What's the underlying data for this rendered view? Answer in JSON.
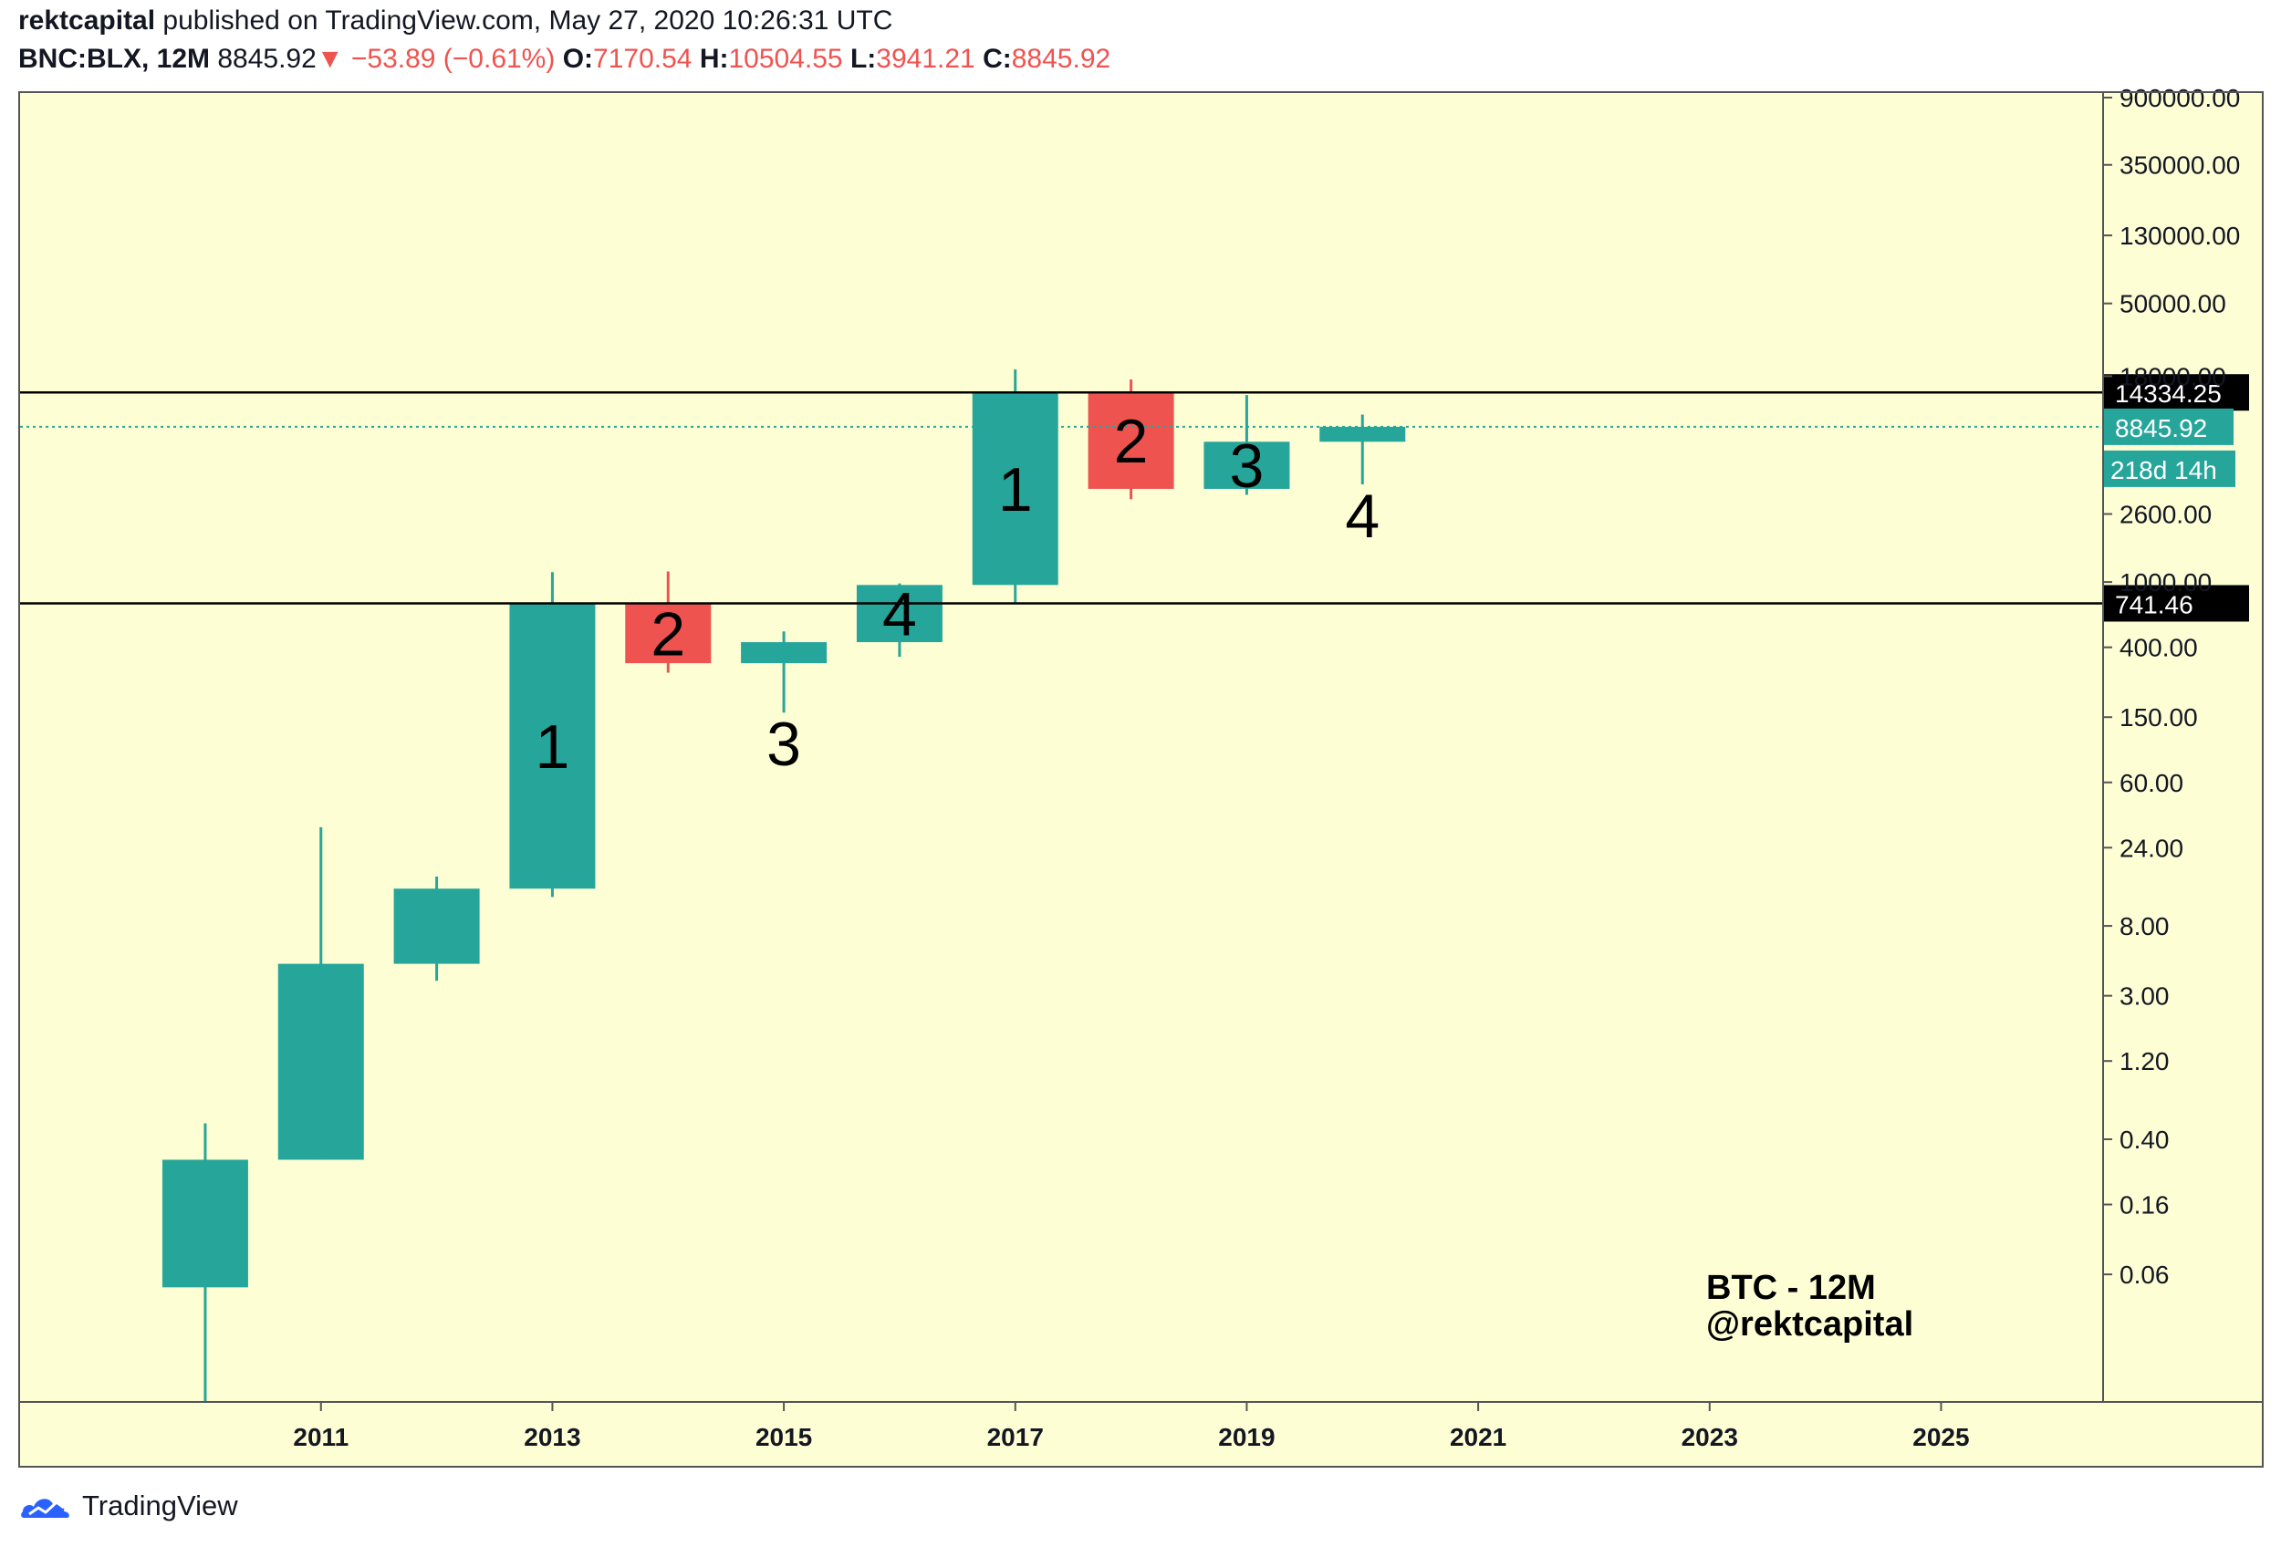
{
  "header": {
    "author": "rektcapital",
    "published_text": "published on TradingView.com, May 27, 2020 10:26:31 UTC",
    "symbol": "BNC:BLX, 12M",
    "last": "8845.92",
    "change_arrow": "▼",
    "change": "−53.89 (−0.61%)",
    "open_label": "O:",
    "open": "7170.54",
    "high_label": "H:",
    "high": "10504.55",
    "low_label": "L:",
    "low": "3941.21",
    "close_label": "C:",
    "close": "8845.92"
  },
  "footer": {
    "brand": "TradingView"
  },
  "colors": {
    "background": "#fefed5",
    "up": "#26a69a",
    "down": "#ef5350",
    "axis_text": "#131722"
  },
  "chart_data": {
    "type": "candlestick",
    "y_scale": "log",
    "ylim": [
      0.01,
      900000
    ],
    "xlim": [
      2008.4,
      2026.4
    ],
    "x_ticks": [
      "2011",
      "2013",
      "2015",
      "2017",
      "2019",
      "2021",
      "2023",
      "2025"
    ],
    "y_ticks": [
      "900000.00",
      "350000.00",
      "130000.00",
      "50000.00",
      "18000.00",
      "2600.00",
      "1000.00",
      "400.00",
      "150.00",
      "60.00",
      "24.00",
      "8.00",
      "3.00",
      "1.20",
      "0.40",
      "0.16",
      "0.06"
    ],
    "candles": [
      {
        "year": 2010,
        "open": 0.05,
        "high": 0.5,
        "low": 0.01,
        "close": 0.3,
        "label": ""
      },
      {
        "year": 2011,
        "open": 0.3,
        "high": 32,
        "low": 0.3,
        "close": 4.7,
        "label": ""
      },
      {
        "year": 2012,
        "open": 4.7,
        "high": 16,
        "low": 3.7,
        "close": 13.5,
        "label": ""
      },
      {
        "year": 2013,
        "open": 13.5,
        "high": 1150,
        "low": 12,
        "close": 741.46,
        "label": "1"
      },
      {
        "year": 2014,
        "open": 741.46,
        "high": 1160,
        "low": 280,
        "close": 320,
        "label": "2"
      },
      {
        "year": 2015,
        "open": 320,
        "high": 500,
        "low": 160,
        "close": 430,
        "label": "3"
      },
      {
        "year": 2016,
        "open": 430,
        "high": 980,
        "low": 350,
        "close": 960,
        "label": "4"
      },
      {
        "year": 2017,
        "open": 960,
        "high": 19800,
        "low": 750,
        "close": 14334.25,
        "label": "1"
      },
      {
        "year": 2018,
        "open": 14334.25,
        "high": 17200,
        "low": 3200,
        "close": 3700,
        "label": "2"
      },
      {
        "year": 2019,
        "open": 3700,
        "high": 13800,
        "low": 3400,
        "close": 7170.54,
        "label": "3"
      },
      {
        "year": 2020,
        "open": 7170.54,
        "high": 10504.55,
        "low": 3941.21,
        "close": 8845.92,
        "label": "4"
      }
    ],
    "horizontal_levels": [
      {
        "value": 14334.25,
        "label": "14334.25"
      },
      {
        "value": 741.46,
        "label": "741.46"
      }
    ],
    "last_price": {
      "value": 8845.92,
      "label": "8845.92",
      "countdown": "218d 14h"
    },
    "annotation": [
      "BTC - 12M",
      "@rektcapital"
    ]
  }
}
